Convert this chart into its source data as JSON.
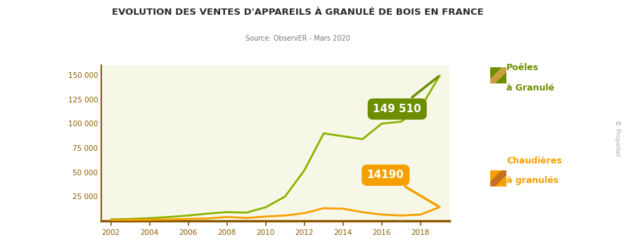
{
  "title": "EVOLUTION DES VENTES D'APPAREILS À GRANULÉ DE BOIS EN FRANCE",
  "subtitle": "Source: ObservER - Mars 2020",
  "background_color": "#f7f7e8",
  "fig_background": "#ffffff",
  "years": [
    2002,
    2003,
    2004,
    2005,
    2006,
    2007,
    2008,
    2009,
    2010,
    2011,
    2012,
    2013,
    2014,
    2015,
    2016,
    2017,
    2018,
    2019
  ],
  "poeles": [
    1500,
    2000,
    2800,
    4000,
    5500,
    7500,
    9000,
    8500,
    14000,
    25000,
    52000,
    90000,
    87000,
    84000,
    100000,
    102000,
    116000,
    149510
  ],
  "chaudieres": [
    800,
    1000,
    1200,
    1500,
    2000,
    2500,
    4000,
    3000,
    4500,
    5500,
    8000,
    13000,
    12500,
    9000,
    6500,
    5500,
    6500,
    14190
  ],
  "poeles_color": "#8ab400",
  "poeles_label_color": "#6b8f00",
  "chaudieres_color": "#f5a000",
  "chaudieres_label_color": "#e07800",
  "axis_color": "#8b5a00",
  "tick_color": "#8b5a00",
  "ytick_values": [
    0,
    25000,
    50000,
    75000,
    100000,
    125000,
    150000
  ],
  "ytick_labels": [
    "",
    "25 000",
    "50 000",
    "75 000",
    "100 000",
    "125 000",
    "150 000"
  ],
  "ylim": [
    0,
    160000
  ],
  "xlim": [
    2001.5,
    2019.5
  ],
  "poeles_annotation": "149 510",
  "poeles_label1": "Poêles",
  "poeles_label2": "à Granulé",
  "chaudieres_annotation": "14190",
  "chaudieres_label1": "Chaudières",
  "chaudieres_label2": "à granulés",
  "copyright": "© Propellet"
}
